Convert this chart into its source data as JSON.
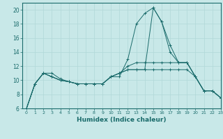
{
  "xlabel": "Humidex (Indice chaleur)",
  "ylabel": "",
  "background_color": "#c8e8e8",
  "grid_color": "#b0d8d8",
  "line_color": "#1a6b6b",
  "xlim": [
    -0.5,
    23
  ],
  "ylim": [
    6,
    21
  ],
  "yticks": [
    6,
    8,
    10,
    12,
    14,
    16,
    18,
    20
  ],
  "xticks": [
    0,
    1,
    2,
    3,
    4,
    5,
    6,
    7,
    8,
    9,
    10,
    11,
    12,
    13,
    14,
    15,
    16,
    17,
    18,
    19,
    20,
    21,
    22,
    23
  ],
  "series": [
    [
      6.0,
      9.5,
      11.0,
      11.0,
      10.2,
      9.8,
      9.5,
      9.5,
      9.5,
      9.5,
      10.5,
      10.5,
      13.0,
      18.0,
      19.5,
      20.3,
      18.3,
      15.0,
      12.5,
      12.5,
      10.5,
      8.5,
      8.5,
      7.5
    ],
    [
      6.0,
      9.5,
      11.0,
      10.5,
      10.0,
      9.8,
      9.5,
      9.5,
      9.5,
      9.5,
      10.5,
      11.0,
      12.0,
      12.5,
      12.5,
      12.5,
      12.5,
      12.5,
      12.5,
      12.5,
      10.5,
      8.5,
      8.5,
      7.5
    ],
    [
      6.0,
      9.5,
      11.0,
      10.5,
      10.0,
      9.8,
      9.5,
      9.5,
      9.5,
      9.5,
      10.5,
      11.0,
      11.5,
      11.5,
      11.5,
      20.3,
      18.3,
      14.0,
      12.5,
      12.5,
      10.5,
      8.5,
      8.5,
      7.5
    ],
    [
      6.0,
      9.5,
      11.0,
      10.5,
      10.0,
      9.8,
      9.5,
      9.5,
      9.5,
      9.5,
      10.5,
      11.0,
      11.5,
      11.5,
      11.5,
      11.5,
      11.5,
      11.5,
      11.5,
      11.5,
      10.5,
      8.5,
      8.5,
      7.5
    ]
  ]
}
